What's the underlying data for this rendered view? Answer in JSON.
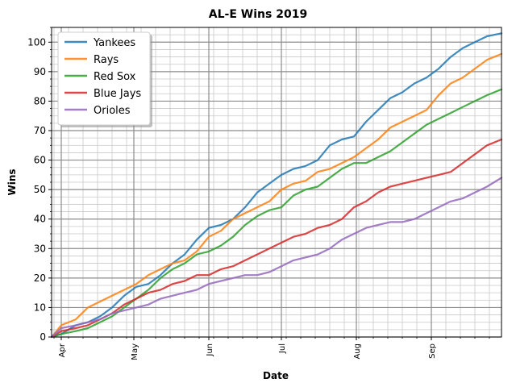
{
  "chart_data": {
    "type": "line",
    "title": "AL-E Wins 2019",
    "xlabel": "Date",
    "ylabel": "Wins",
    "ylim": [
      0,
      105
    ],
    "yticks": [
      0,
      10,
      20,
      30,
      40,
      50,
      60,
      70,
      80,
      90,
      100
    ],
    "x_unit": "day of season (0 = Mar 28, 2019)",
    "xlim": [
      0,
      186
    ],
    "xticks": [
      {
        "label": "Apr",
        "day": 4
      },
      {
        "label": "May",
        "day": 34
      },
      {
        "label": "Jun",
        "day": 65
      },
      {
        "label": "Jul",
        "day": 95
      },
      {
        "label": "Aug",
        "day": 126
      },
      {
        "label": "Sep",
        "day": 157
      }
    ],
    "legend_position": "top-left",
    "series": [
      {
        "name": "Yankees",
        "color": "#1f77b4",
        "x": [
          0,
          4,
          10,
          15,
          20,
          25,
          30,
          35,
          40,
          45,
          50,
          55,
          60,
          65,
          70,
          75,
          80,
          85,
          90,
          95,
          100,
          105,
          110,
          115,
          120,
          125,
          130,
          135,
          140,
          145,
          150,
          155,
          160,
          165,
          170,
          175,
          180,
          186
        ],
        "y": [
          0,
          1,
          4,
          5,
          7,
          10,
          14,
          17,
          18,
          21,
          25,
          28,
          33,
          37,
          38,
          40,
          44,
          49,
          52,
          55,
          57,
          58,
          60,
          65,
          67,
          68,
          73,
          77,
          81,
          83,
          86,
          88,
          91,
          95,
          98,
          100,
          102,
          103
        ]
      },
      {
        "name": "Rays",
        "color": "#ff7f0e",
        "x": [
          0,
          4,
          10,
          15,
          20,
          25,
          30,
          35,
          40,
          45,
          50,
          55,
          60,
          65,
          70,
          75,
          80,
          85,
          90,
          95,
          100,
          105,
          110,
          115,
          120,
          125,
          130,
          135,
          140,
          145,
          150,
          155,
          160,
          165,
          170,
          175,
          180,
          186
        ],
        "y": [
          0,
          4,
          6,
          10,
          12,
          14,
          16,
          18,
          21,
          23,
          25,
          26,
          29,
          34,
          36,
          40,
          42,
          44,
          46,
          50,
          52,
          53,
          56,
          57,
          59,
          61,
          64,
          67,
          71,
          73,
          75,
          77,
          82,
          86,
          88,
          91,
          94,
          96
        ]
      },
      {
        "name": "Red Sox",
        "color": "#2ca02c",
        "x": [
          0,
          4,
          10,
          15,
          20,
          25,
          30,
          35,
          40,
          45,
          50,
          55,
          60,
          65,
          70,
          75,
          80,
          85,
          90,
          95,
          100,
          105,
          110,
          115,
          120,
          125,
          130,
          135,
          140,
          145,
          150,
          155,
          160,
          165,
          170,
          175,
          180,
          186
        ],
        "y": [
          0,
          1,
          2,
          3,
          5,
          7,
          10,
          13,
          16,
          20,
          23,
          25,
          28,
          29,
          31,
          34,
          38,
          41,
          43,
          44,
          48,
          50,
          51,
          54,
          57,
          59,
          59,
          61,
          63,
          66,
          69,
          72,
          74,
          76,
          78,
          80,
          82,
          84
        ]
      },
      {
        "name": "Blue Jays",
        "color": "#d62728",
        "x": [
          0,
          4,
          10,
          15,
          20,
          25,
          30,
          35,
          40,
          45,
          50,
          55,
          60,
          65,
          70,
          75,
          80,
          85,
          90,
          95,
          100,
          105,
          110,
          115,
          120,
          125,
          130,
          135,
          140,
          145,
          150,
          155,
          160,
          165,
          170,
          175,
          180,
          186
        ],
        "y": [
          0,
          2,
          3,
          4,
          6,
          8,
          11,
          13,
          15,
          16,
          18,
          19,
          21,
          21,
          23,
          24,
          26,
          28,
          30,
          32,
          34,
          35,
          37,
          38,
          40,
          44,
          46,
          49,
          51,
          52,
          53,
          54,
          55,
          56,
          59,
          62,
          65,
          67
        ]
      },
      {
        "name": "Orioles",
        "color": "#9467bd",
        "x": [
          0,
          4,
          10,
          15,
          20,
          25,
          30,
          35,
          40,
          45,
          50,
          55,
          60,
          65,
          70,
          75,
          80,
          85,
          90,
          95,
          100,
          105,
          110,
          115,
          120,
          125,
          130,
          135,
          140,
          145,
          150,
          155,
          160,
          165,
          170,
          175,
          180,
          186
        ],
        "y": [
          0,
          3,
          4,
          5,
          6,
          8,
          9,
          10,
          11,
          13,
          14,
          15,
          16,
          18,
          19,
          20,
          21,
          21,
          22,
          24,
          26,
          27,
          28,
          30,
          33,
          35,
          37,
          38,
          39,
          39,
          40,
          42,
          44,
          46,
          47,
          49,
          51,
          54
        ]
      }
    ]
  }
}
